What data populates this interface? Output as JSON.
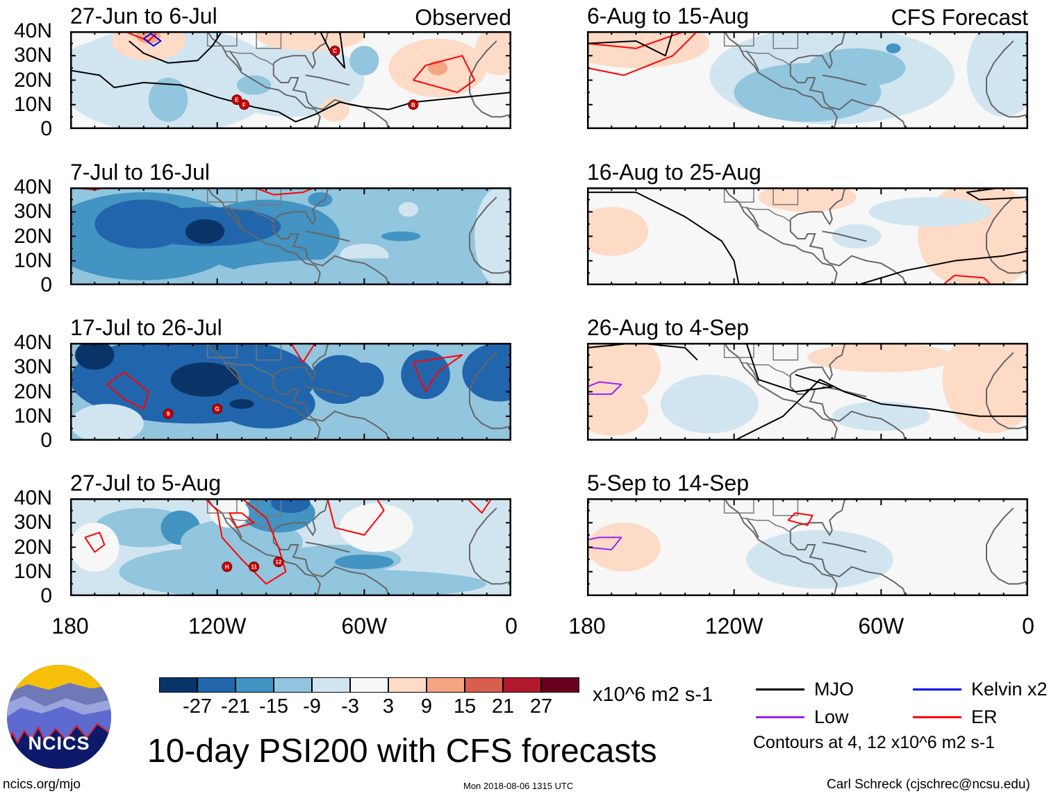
{
  "title": "10-day PSI200 with CFS forecasts",
  "column_labels": {
    "left": "Observed",
    "right": "CFS Forecast"
  },
  "panels": [
    {
      "period": "27-Jun to 6-Jul",
      "column": "left",
      "storms": [
        "E",
        "F",
        "C",
        "B"
      ]
    },
    {
      "period": "7-Jul to 16-Jul",
      "column": "left",
      "storms": []
    },
    {
      "period": "17-Jul to 26-Jul",
      "column": "left",
      "storms": [
        "9",
        "G"
      ]
    },
    {
      "period": "27-Jul to 5-Aug",
      "column": "left",
      "storms": [
        "H",
        "12",
        "11"
      ]
    },
    {
      "period": "6-Aug to 15-Aug",
      "column": "right",
      "storms": []
    },
    {
      "period": "16-Aug to 25-Aug",
      "column": "right",
      "storms": []
    },
    {
      "period": "26-Aug to 4-Sep",
      "column": "right",
      "storms": []
    },
    {
      "period": "5-Sep to 14-Sep",
      "column": "right",
      "storms": []
    }
  ],
  "lat_labels": [
    "40N",
    "30N",
    "20N",
    "10N",
    "0"
  ],
  "lon_labels": [
    "180",
    "120W",
    "60W",
    "0"
  ],
  "colorbar": {
    "colors": [
      "#0a3468",
      "#2166ac",
      "#4393c3",
      "#92c5de",
      "#d1e5f0",
      "#f7f7f7",
      "#fddbc7",
      "#f4a582",
      "#d6604d",
      "#b2182b",
      "#67001f"
    ],
    "labels": [
      "-27",
      "-21",
      "-15",
      "-9",
      "-3",
      "3",
      "9",
      "15",
      "21",
      "27"
    ],
    "units": "x10^6 m2 s-1"
  },
  "legend": {
    "items": [
      {
        "label": "MJO",
        "color": "#000000"
      },
      {
        "label": "Kelvin x2",
        "color": "#0000ff"
      },
      {
        "label": "Low",
        "color": "#a020f0"
      },
      {
        "label": "ER",
        "color": "#ff0000"
      }
    ],
    "contours_note": "Contours at 4, 12 x10^6 m2 s-1"
  },
  "logo": {
    "text": "NCICS"
  },
  "footer": {
    "left": "ncics.org/mjo",
    "center": "Mon 2018-08-06 1315 UTC",
    "right": "Carl Schreck (cjschrec@ncsu.edu)"
  }
}
